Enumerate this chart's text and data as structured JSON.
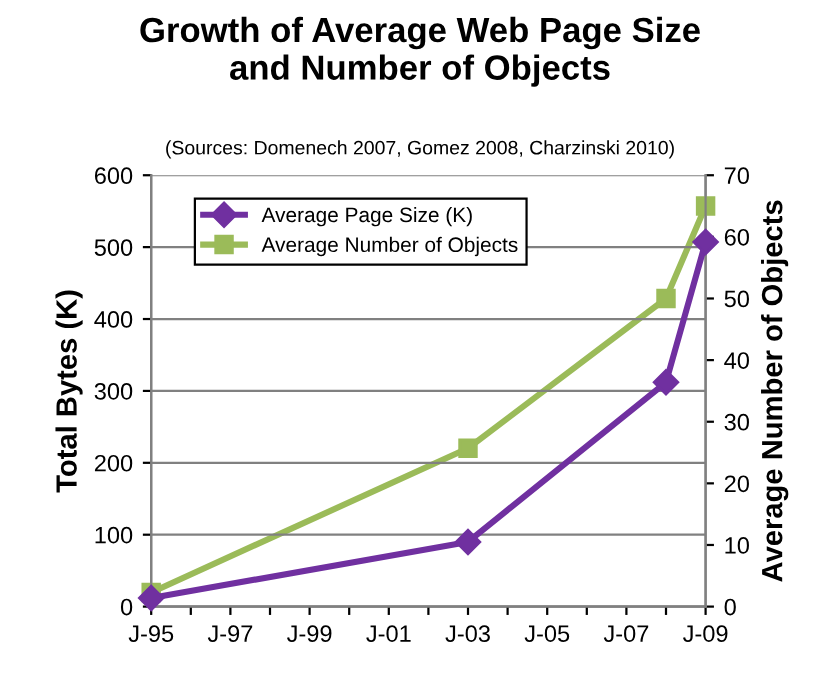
{
  "chart_data": {
    "type": "line",
    "title": "Growth of Average Web Page Size\nand Number of Objects",
    "annotations": [
      "(Sources: Domenech 2007, Gomez 2008, Charzinski 2010)"
    ],
    "ylabel": "Total Bytes (K)",
    "y2label": "Average Number of Objects",
    "series": [
      {
        "name": "Average Page Size (K)",
        "color": "#7030a0",
        "marker": "diamond",
        "x": [
          "1995-01",
          "2003-01",
          "2008-01",
          "2009-01"
        ],
        "values": [
          12,
          90,
          312,
          507
        ]
      },
      {
        "name": "Average Number of Objects",
        "color": "#9bbb59",
        "marker": "square",
        "axis": "y2",
        "x": [
          "1995-01",
          "2003-01",
          "2008-01",
          "2009-01"
        ],
        "values": [
          2.3,
          25.7,
          50,
          65
        ]
      }
    ],
    "xlim": [
      "1995-01",
      "2009-01"
    ],
    "xticks": [
      {
        "value": "1995-01",
        "label": "J-95"
      },
      {
        "value": "1996-01",
        "label": null
      },
      {
        "value": "1997-01",
        "label": "J-97"
      },
      {
        "value": "1998-01",
        "label": null
      },
      {
        "value": "1999-01",
        "label": "J-99"
      },
      {
        "value": "2000-01",
        "label": null
      },
      {
        "value": "2001-01",
        "label": "J-01"
      },
      {
        "value": "2002-01",
        "label": null
      },
      {
        "value": "2003-01",
        "label": "J-03"
      },
      {
        "value": "2004-01",
        "label": null
      },
      {
        "value": "2005-01",
        "label": "J-05"
      },
      {
        "value": "2006-01",
        "label": null
      },
      {
        "value": "2007-01",
        "label": "J-07"
      },
      {
        "value": "2008-01",
        "label": null
      },
      {
        "value": "2009-01",
        "label": "J-09"
      }
    ],
    "ylim": [
      0,
      600
    ],
    "yticks": [
      0,
      100,
      200,
      300,
      400,
      500,
      600
    ],
    "y2lim": [
      0,
      70
    ],
    "y2ticks": [
      0,
      10,
      20,
      30,
      40,
      50,
      60,
      70
    ],
    "grid": "y",
    "legend": "top left",
    "line_style": "solid"
  }
}
